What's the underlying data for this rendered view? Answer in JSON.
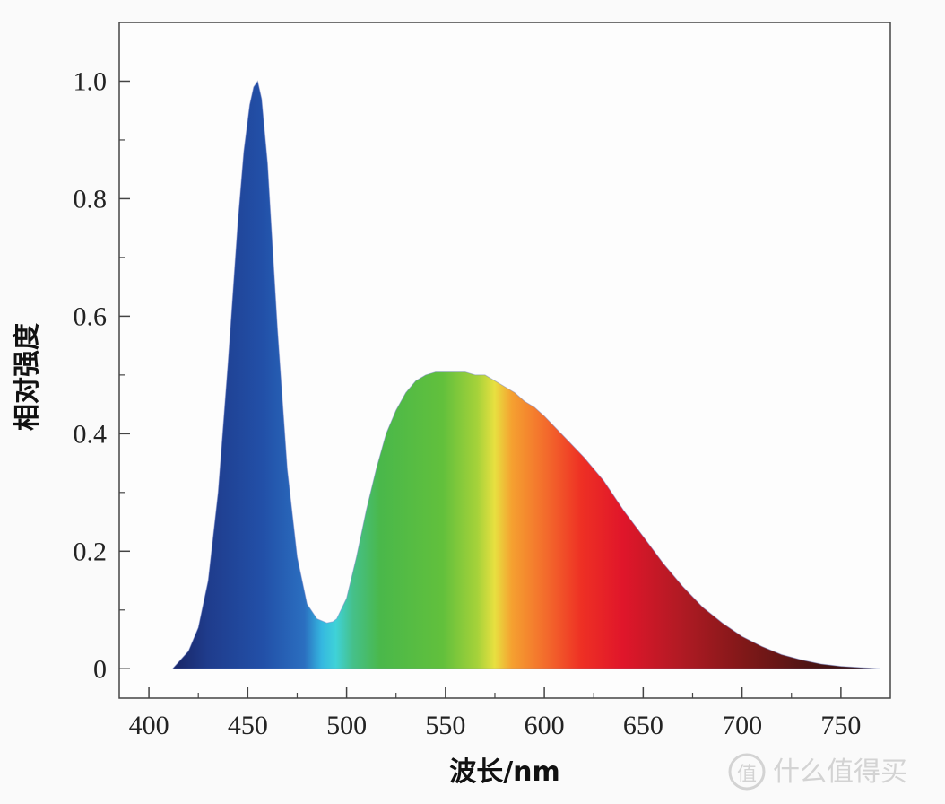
{
  "chart_data": {
    "type": "area",
    "title": "",
    "xlabel": "波长/nm",
    "ylabel": "相对强度",
    "xlim": [
      385,
      775
    ],
    "ylim": [
      -0.05,
      1.1
    ],
    "x_ticks": [
      400,
      450,
      500,
      550,
      600,
      650,
      700,
      750
    ],
    "x_tick_labels": [
      "400",
      "450",
      "500",
      "550",
      "600",
      "650",
      "700",
      "750"
    ],
    "y_ticks": [
      0,
      0.2,
      0.4,
      0.6,
      0.8,
      1.0
    ],
    "y_tick_labels": [
      "0",
      "0.2",
      "0.4",
      "0.6",
      "0.8",
      "1.0"
    ],
    "grid": false,
    "fill": "visible-spectrum colors",
    "series": [
      {
        "x": [
          412,
          420,
          425,
          430,
          435,
          440,
          445,
          448,
          451,
          453,
          455,
          457,
          460,
          465,
          470,
          475,
          480,
          485,
          490,
          493,
          495,
          500,
          505,
          510,
          515,
          520,
          525,
          530,
          535,
          540,
          545,
          550,
          555,
          560,
          565,
          570,
          575,
          580,
          585,
          590,
          595,
          600,
          610,
          620,
          630,
          640,
          650,
          660,
          670,
          680,
          690,
          700,
          710,
          720,
          730,
          740,
          750,
          760,
          770
        ],
        "y": [
          0.0,
          0.03,
          0.07,
          0.15,
          0.3,
          0.52,
          0.76,
          0.88,
          0.96,
          0.99,
          1.0,
          0.97,
          0.86,
          0.58,
          0.34,
          0.19,
          0.11,
          0.085,
          0.078,
          0.08,
          0.085,
          0.12,
          0.19,
          0.27,
          0.34,
          0.4,
          0.44,
          0.47,
          0.49,
          0.5,
          0.505,
          0.505,
          0.505,
          0.505,
          0.5,
          0.5,
          0.49,
          0.48,
          0.47,
          0.455,
          0.445,
          0.43,
          0.395,
          0.36,
          0.32,
          0.27,
          0.225,
          0.18,
          0.14,
          0.105,
          0.078,
          0.055,
          0.038,
          0.024,
          0.015,
          0.008,
          0.004,
          0.002,
          0.0
        ]
      }
    ]
  },
  "watermark": {
    "logo_glyph": "值",
    "text": "什么值得买"
  }
}
